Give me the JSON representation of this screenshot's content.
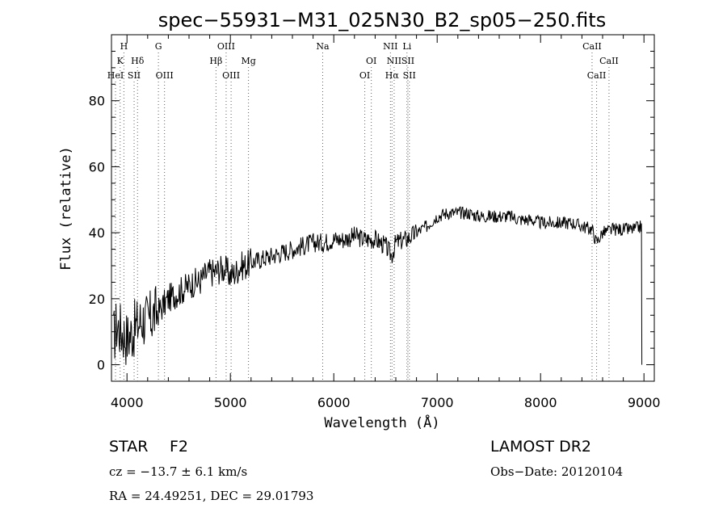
{
  "chart_data": {
    "type": "line",
    "title": "spec−55931−M31_025N30_B2_sp05−250.fits",
    "xlabel": "Wavelength (Å)",
    "ylabel": "Flux (relative)",
    "xlim": [
      3850,
      9100
    ],
    "ylim": [
      -5,
      100
    ],
    "xticks": [
      4000,
      5000,
      6000,
      7000,
      8000,
      9000
    ],
    "yticks": [
      0,
      20,
      40,
      60,
      80
    ],
    "grid": false,
    "line_color": "#000000",
    "marker_color": "#cc3333",
    "spectrum": {
      "x": [
        3870,
        3900,
        3950,
        4000,
        4050,
        4100,
        4150,
        4200,
        4250,
        4300,
        4350,
        4400,
        4450,
        4500,
        4550,
        4600,
        4650,
        4700,
        4750,
        4800,
        4850,
        4900,
        4950,
        5000,
        5050,
        5100,
        5150,
        5200,
        5300,
        5400,
        5500,
        5600,
        5700,
        5800,
        5900,
        6000,
        6100,
        6200,
        6300,
        6400,
        6500,
        6560,
        6600,
        6700,
        6800,
        6900,
        7000,
        7100,
        7200,
        7300,
        7400,
        7500,
        7600,
        7700,
        7800,
        7900,
        8000,
        8100,
        8200,
        8300,
        8400,
        8500,
        8540,
        8600,
        8700,
        8800,
        8900,
        8980
      ],
      "y": [
        8,
        12,
        10,
        8,
        10,
        12,
        14,
        13,
        15,
        16,
        18,
        20,
        21,
        22,
        23,
        24,
        25,
        25,
        27,
        28,
        28,
        29,
        29,
        27,
        28,
        30,
        30,
        31,
        32,
        33,
        34,
        35,
        36,
        37,
        37,
        38,
        38,
        39,
        38,
        38,
        36,
        33,
        37,
        38,
        40,
        42,
        45,
        46,
        46,
        46,
        45,
        45,
        45,
        45,
        44,
        44,
        43,
        43,
        43,
        43,
        42,
        41,
        37,
        40,
        41,
        41,
        41,
        42
      ]
    },
    "lines": [
      {
        "label": "H",
        "x": 3970,
        "row": 0
      },
      {
        "label": "K",
        "x": 3934,
        "row": 1
      },
      {
        "label": "HeI",
        "x": 3889,
        "row": 2
      },
      {
        "label": "Hδ",
        "x": 4102,
        "row": 1
      },
      {
        "label": "SII",
        "x": 4069,
        "row": 2
      },
      {
        "label": "G",
        "x": 4304,
        "row": 0
      },
      {
        "label": "OIII",
        "x": 4363,
        "row": 2
      },
      {
        "label": "OIII",
        "x": 4959,
        "row": 0
      },
      {
        "label": "Hβ",
        "x": 4861,
        "row": 1
      },
      {
        "label": "OIII",
        "x": 5007,
        "row": 2
      },
      {
        "label": "Mg",
        "x": 5175,
        "row": 1
      },
      {
        "label": "Na",
        "x": 5893,
        "row": 0
      },
      {
        "label": "OI",
        "x": 6363,
        "row": 1
      },
      {
        "label": "OI",
        "x": 6300,
        "row": 2
      },
      {
        "label": "NII",
        "x": 6548,
        "row": 0
      },
      {
        "label": "Li",
        "x": 6708,
        "row": 0
      },
      {
        "label": "NII",
        "x": 6584,
        "row": 1
      },
      {
        "label": "SII",
        "x": 6717,
        "row": 1
      },
      {
        "label": "Hα",
        "x": 6563,
        "row": 2
      },
      {
        "label": "SII",
        "x": 6731,
        "row": 2
      },
      {
        "label": "CaII",
        "x": 8498,
        "row": 0
      },
      {
        "label": "CaII",
        "x": 8662,
        "row": 1
      },
      {
        "label": "CaII",
        "x": 8542,
        "row": 2
      }
    ]
  },
  "info": {
    "class_label": "STAR",
    "subclass": "F2",
    "survey": "LAMOST DR2",
    "velocity": "cz = −13.7 ± 6.1 km/s",
    "obs_date": "Obs−Date: 20120104",
    "coords": "RA =  24.49251, DEC =  29.01793"
  }
}
